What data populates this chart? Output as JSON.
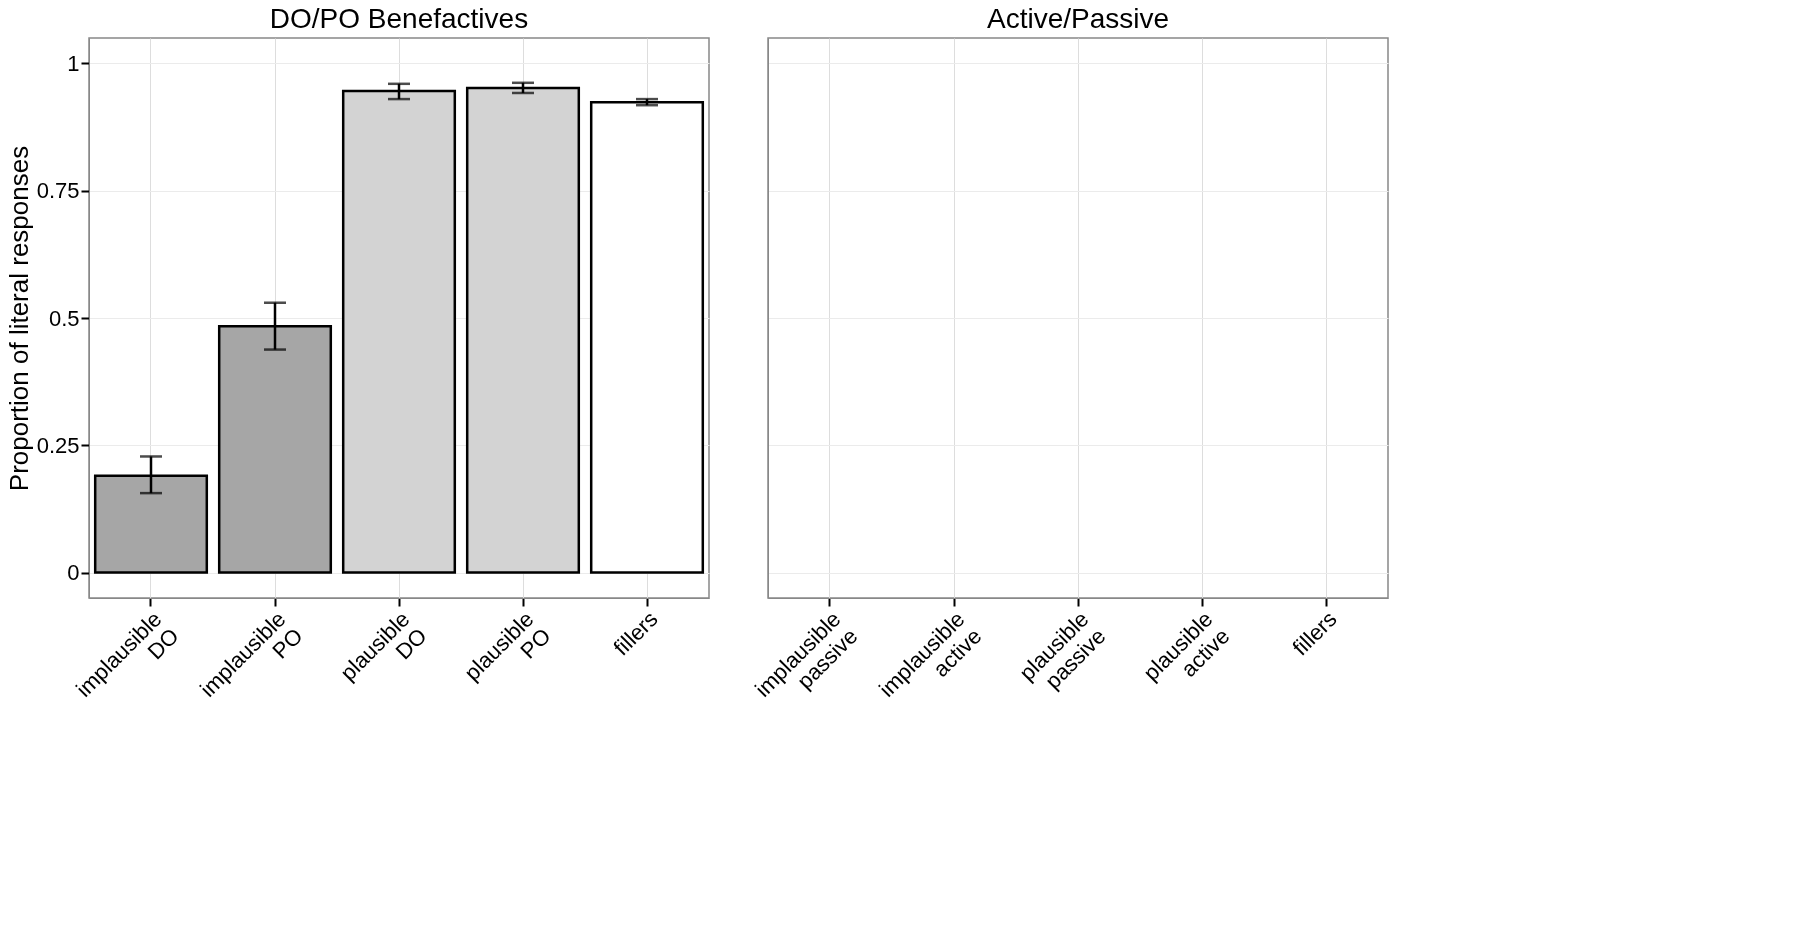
{
  "chart_data": [
    {
      "type": "bar",
      "title": "DO/PO Benefactives",
      "ylabel": "Proportion of literal responses",
      "categories": [
        "implausible DO",
        "implausible PO",
        "plausible DO",
        "plausible PO",
        "fillers"
      ],
      "values": [
        0.19,
        0.484,
        0.946,
        0.952,
        0.924
      ],
      "colors": [
        "#a6a6a6",
        "#a6a6a6",
        "#d3d3d3",
        "#d3d3d3",
        "#ffffff"
      ],
      "errors": [
        [
          0.156,
          0.228
        ],
        [
          0.438,
          0.53
        ],
        [
          0.93,
          0.96
        ],
        [
          0.942,
          0.962
        ],
        [
          0.918,
          0.93
        ]
      ],
      "ylim": [
        -0.05,
        1.05
      ],
      "yticks": [
        0,
        0.25,
        0.5,
        0.75,
        1
      ],
      "grid": true
    },
    {
      "type": "bar",
      "title": "Active/Passive",
      "categories": [
        "implausible passive",
        "implausible active",
        "plausible passive",
        "plausible active",
        "fillers"
      ],
      "values": [
        null,
        null,
        null,
        null,
        null
      ],
      "ylim": [
        -0.05,
        1.05
      ],
      "yticks": [
        0,
        0.25,
        0.5,
        0.75,
        1
      ],
      "grid": true,
      "tick_labels": "x"
    }
  ]
}
